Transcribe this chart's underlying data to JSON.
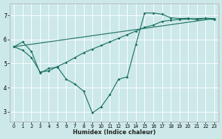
{
  "xlabel": "Humidex (Indice chaleur)",
  "bg_color": "#cce8e8",
  "grid_color": "#ffffff",
  "line_color": "#1a7060",
  "xlim": [
    -0.5,
    23.5
  ],
  "ylim": [
    2.6,
    7.5
  ],
  "xticks": [
    0,
    1,
    2,
    3,
    4,
    5,
    6,
    7,
    8,
    9,
    10,
    11,
    12,
    13,
    14,
    15,
    16,
    17,
    18,
    19,
    20,
    21,
    22,
    23
  ],
  "yticks": [
    3,
    4,
    5,
    6,
    7
  ],
  "line1_x": [
    0,
    1,
    2,
    3,
    4,
    5,
    6,
    7,
    8,
    9,
    10,
    11,
    12,
    13,
    14,
    15,
    16,
    17,
    18,
    19,
    20,
    21,
    22,
    23
  ],
  "line1_y": [
    5.7,
    5.9,
    5.5,
    4.6,
    4.8,
    4.85,
    4.35,
    4.15,
    3.85,
    2.95,
    3.2,
    3.7,
    4.35,
    4.45,
    5.8,
    7.1,
    7.1,
    7.05,
    6.9,
    6.87,
    6.88,
    6.82,
    6.88,
    6.82
  ],
  "line2_x": [
    0,
    23
  ],
  "line2_y": [
    5.7,
    6.87
  ],
  "line3_x": [
    0,
    1,
    2,
    3,
    4,
    5,
    6,
    7,
    8,
    9,
    10,
    11,
    12,
    13,
    14,
    15,
    16,
    17,
    18,
    19,
    20,
    21,
    22,
    23
  ],
  "line3_y": [
    5.7,
    5.55,
    5.25,
    4.65,
    4.7,
    4.88,
    5.05,
    5.25,
    5.45,
    5.6,
    5.75,
    5.9,
    6.05,
    6.2,
    6.35,
    6.5,
    6.6,
    6.75,
    6.8,
    6.83,
    6.85,
    6.87,
    6.88,
    6.87
  ]
}
